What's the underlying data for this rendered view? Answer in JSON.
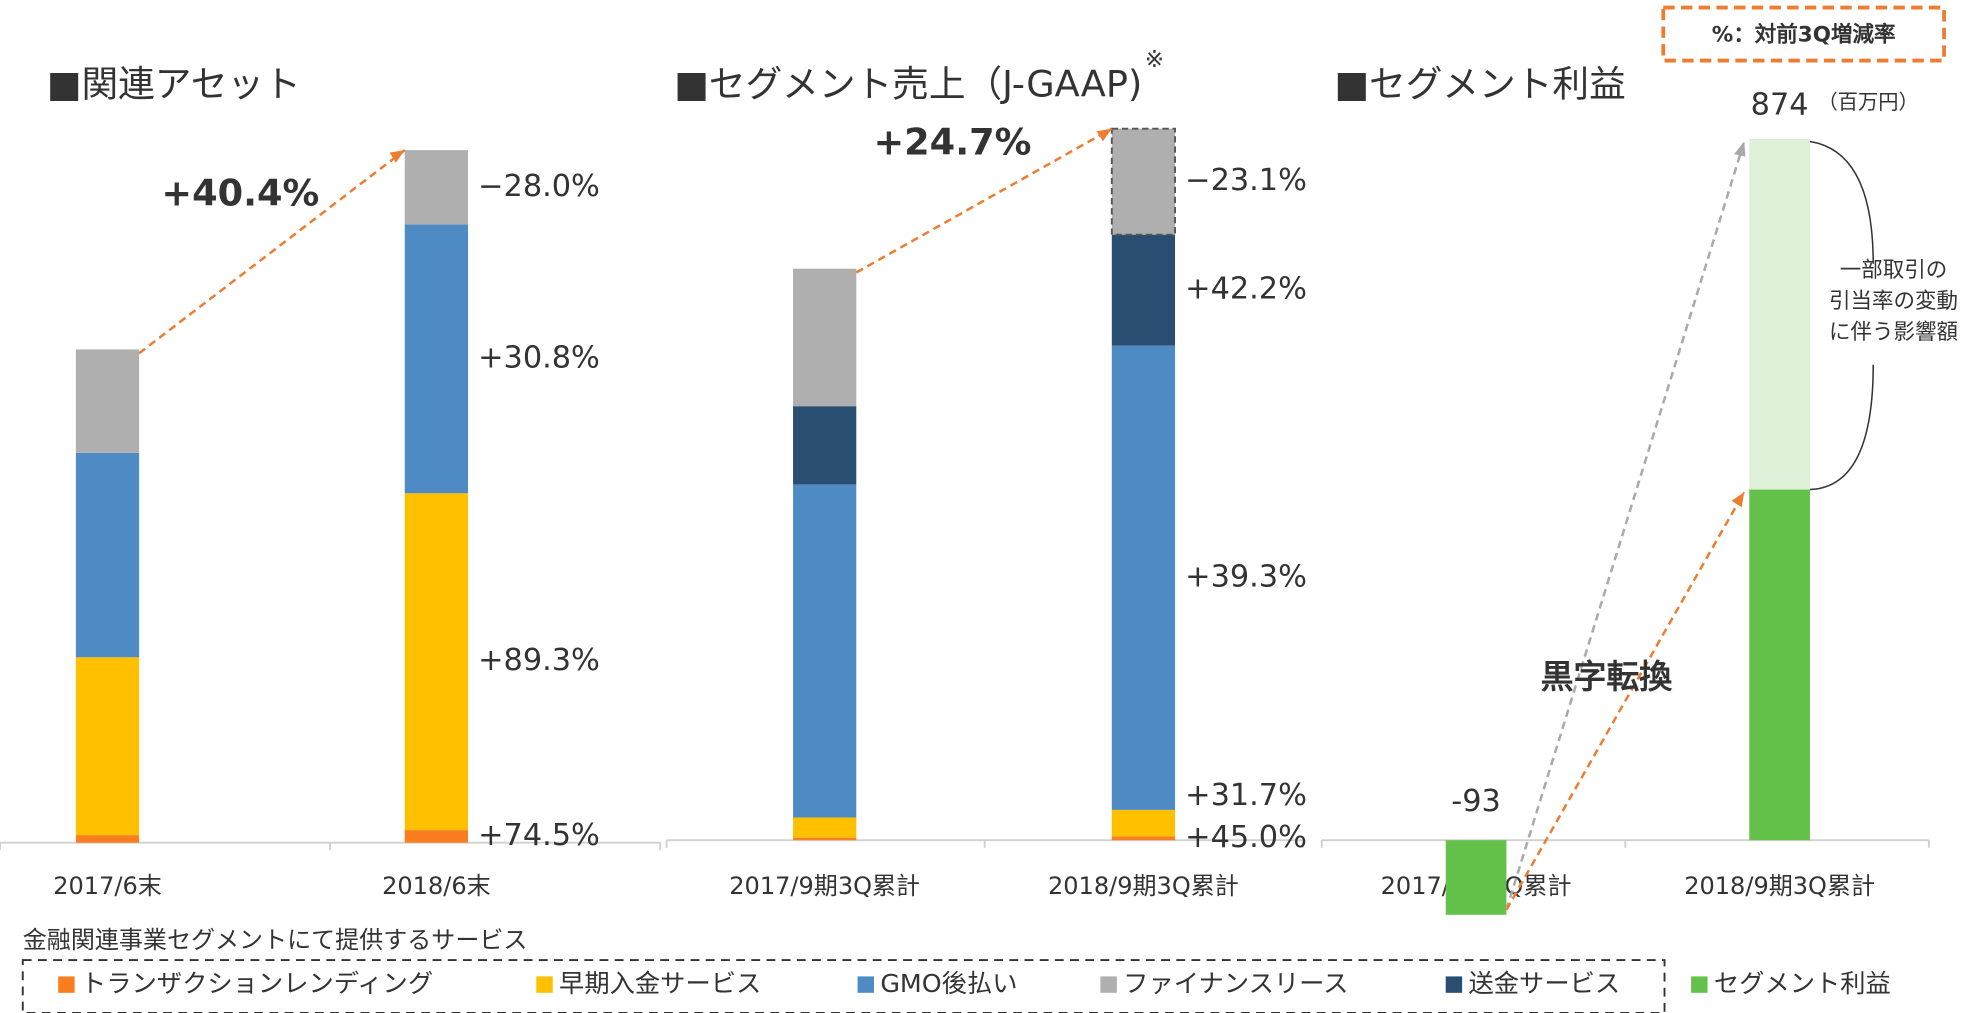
{
  "note_box": "%：対前3Q増減率",
  "legend_caption": "金融関連事業セグメントにて提供するサービス",
  "chart_data": [
    {
      "type": "stacked_bar",
      "title": "■関連アセット",
      "categories": [
        "2017/6末",
        "2018/6末"
      ],
      "ylim": [
        0,
        560
      ],
      "series": [
        {
          "name": "トランザクションレンディング",
          "color": "#fa7d1e",
          "values": [
            6,
            10
          ],
          "change_label": "+74.5%"
        },
        {
          "name": "早期入金サービス",
          "color": "#ffc000",
          "values": [
            141,
            267
          ],
          "change_label": "+89.3%"
        },
        {
          "name": "GMO後払い",
          "color": "#4e8ac4",
          "values": [
            162,
            213
          ],
          "change_label": "+30.8%"
        },
        {
          "name": "ファイナンスリース",
          "color": "#afafaf",
          "values": [
            82,
            59
          ],
          "change_label": "−28.0%"
        }
      ],
      "growth_label": "+40.4%"
    },
    {
      "type": "stacked_bar",
      "title": "■セグメント売上（J-GAAP)",
      "title_mark": "※",
      "categories": [
        "2017/9期3Q累計",
        "2018/9期3Q累計"
      ],
      "ylim": [
        0,
        563
      ],
      "series": [
        {
          "name": "トランザクションレンディング",
          "color": "#fa7d1e",
          "values": [
            2,
            3
          ],
          "change_label": "+45.0%"
        },
        {
          "name": "早期入金サービス",
          "color": "#ffc000",
          "values": [
            16,
            21
          ],
          "change_label": "+31.7%"
        },
        {
          "name": "GMO後払い",
          "color": "#4e8ac4",
          "values": [
            264,
            368
          ],
          "change_label": "+39.3%"
        },
        {
          "name": "送金サービス",
          "color": "#2a4d72",
          "values": [
            62,
            88
          ],
          "change_label": "+42.2%"
        },
        {
          "name": "ファイナンスリース",
          "color": "#afafaf",
          "values": [
            109,
            84
          ],
          "change_label": "−23.1%"
        }
      ],
      "growth_label": "+24.7%"
    },
    {
      "type": "stacked_bar",
      "title": "■セグメント利益",
      "unit": "（百万円）",
      "categories": [
        "2017/9期3Q累計",
        "2018/9期3Q累計"
      ],
      "ylim": [
        -100,
        900
      ],
      "series": [
        {
          "name": "セグメント利益",
          "color": "#64c24b",
          "values": [
            -93,
            437
          ]
        },
        {
          "color": "#dff0d8",
          "values": [
            null,
            437
          ]
        }
      ],
      "totals": [
        -93,
        874
      ],
      "annotation": "黒字転換",
      "bracket_label": [
        "一部取引の",
        "引当率の変動",
        "に伴う影響額"
      ]
    }
  ]
}
